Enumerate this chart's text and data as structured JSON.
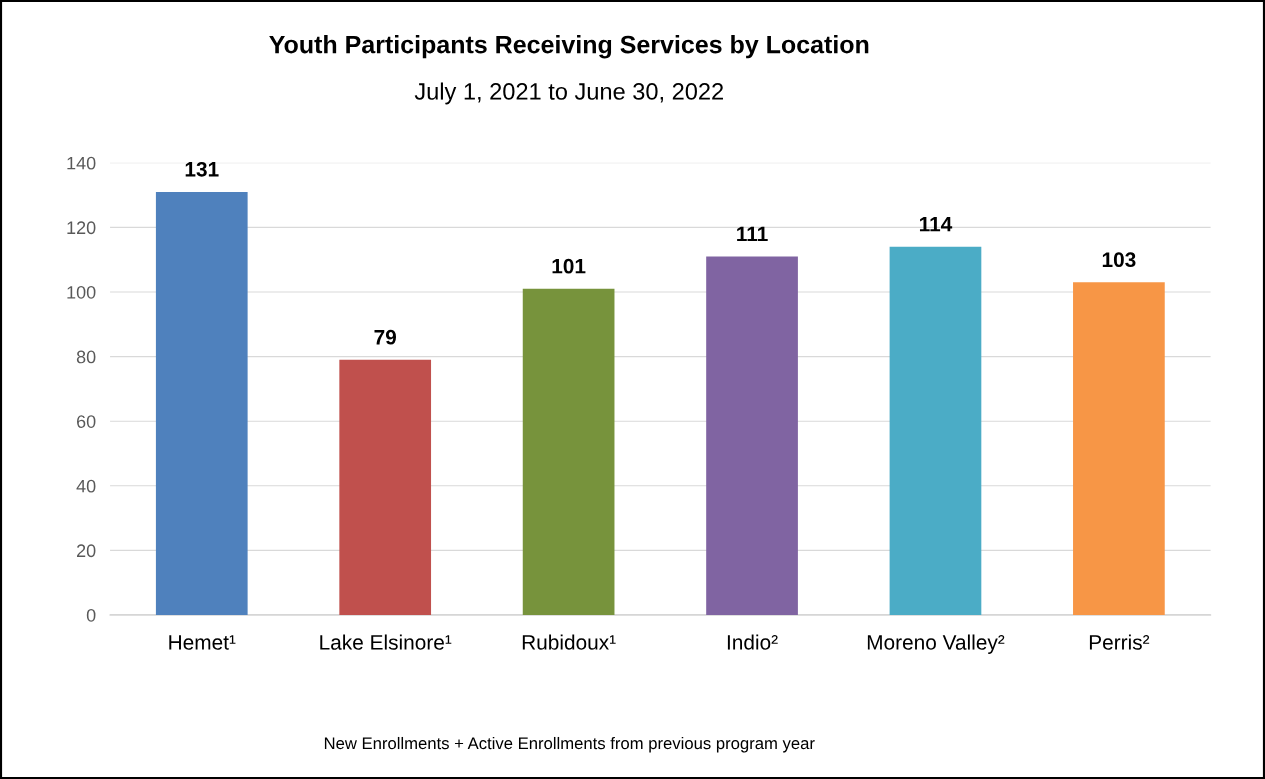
{
  "chart_data": {
    "type": "bar",
    "title": "Youth Participants Receiving Services by Location",
    "subtitle": "July 1, 2021 to June 30, 2022",
    "categories": [
      "Hemet¹",
      "Lake Elsinore¹",
      "Rubidoux¹",
      "Indio²",
      "Moreno Valley²",
      "Perris²"
    ],
    "values": [
      131,
      79,
      101,
      111,
      114,
      103
    ],
    "colors": [
      "#4f81bd",
      "#c0504d",
      "#77933c",
      "#8064a2",
      "#4bacc6",
      "#f79646"
    ],
    "ylim": [
      0,
      140
    ],
    "yticks": [
      0,
      20,
      40,
      60,
      80,
      100,
      120,
      140
    ],
    "grid": "y",
    "data_labels": true,
    "annotations": [
      "New Enrollments + Active Enrollments from previous program year"
    ]
  }
}
